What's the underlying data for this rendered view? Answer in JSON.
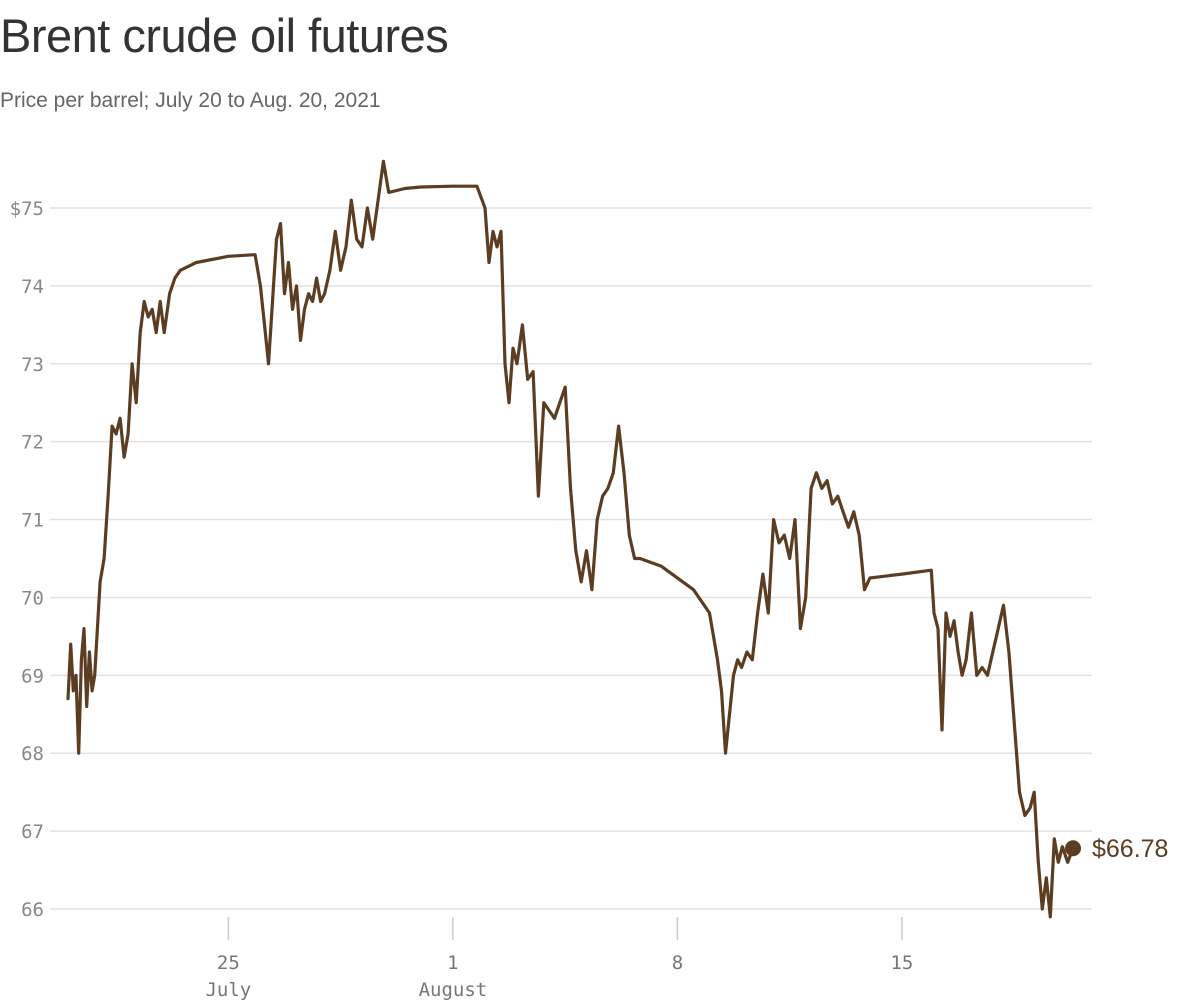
{
  "header": {
    "title": "Brent crude oil futures",
    "subtitle": "Price per barrel; July 20 to Aug. 20, 2021"
  },
  "colors": {
    "line": "#5c3d22",
    "grid": "#e2e2e2",
    "axis_text": "#888888"
  },
  "chart_data": {
    "type": "line",
    "title": "Brent crude oil futures",
    "subtitle": "Price per barrel; July 20 to Aug. 20, 2021",
    "xlabel": "",
    "ylabel": "",
    "ylim": [
      66,
      76
    ],
    "y_ticks": [
      66,
      67,
      68,
      69,
      70,
      71,
      72,
      73,
      74,
      75
    ],
    "y_tick_labels": [
      "66",
      "67",
      "68",
      "69",
      "70",
      "71",
      "72",
      "73",
      "74",
      "$75"
    ],
    "x_ticks": [
      {
        "date": "2021-07-25",
        "label": "25",
        "sublabel": "July"
      },
      {
        "date": "2021-08-01",
        "label": "1",
        "sublabel": "August"
      },
      {
        "date": "2021-08-08",
        "label": "8",
        "sublabel": ""
      },
      {
        "date": "2021-08-15",
        "label": "15",
        "sublabel": ""
      }
    ],
    "grid": true,
    "series": [
      {
        "values": [
          [
            "2021-07-20T00:00",
            68.7
          ],
          [
            "2021-07-20T02:00",
            69.4
          ],
          [
            "2021-07-20T04:00",
            68.8
          ],
          [
            "2021-07-20T06:00",
            69.0
          ],
          [
            "2021-07-20T08:00",
            68.0
          ],
          [
            "2021-07-20T10:00",
            69.2
          ],
          [
            "2021-07-20T12:00",
            69.6
          ],
          [
            "2021-07-20T14:00",
            68.6
          ],
          [
            "2021-07-20T16:00",
            69.3
          ],
          [
            "2021-07-20T18:00",
            68.8
          ],
          [
            "2021-07-20T20:00",
            69.0
          ],
          [
            "2021-07-21T00:00",
            70.2
          ],
          [
            "2021-07-21T03:00",
            70.5
          ],
          [
            "2021-07-21T06:00",
            71.3
          ],
          [
            "2021-07-21T09:00",
            72.2
          ],
          [
            "2021-07-21T12:00",
            72.1
          ],
          [
            "2021-07-21T15:00",
            72.3
          ],
          [
            "2021-07-21T18:00",
            71.8
          ],
          [
            "2021-07-21T21:00",
            72.1
          ],
          [
            "2021-07-22T00:00",
            73.0
          ],
          [
            "2021-07-22T03:00",
            72.5
          ],
          [
            "2021-07-22T06:00",
            73.4
          ],
          [
            "2021-07-22T09:00",
            73.8
          ],
          [
            "2021-07-22T12:00",
            73.6
          ],
          [
            "2021-07-22T15:00",
            73.7
          ],
          [
            "2021-07-22T18:00",
            73.4
          ],
          [
            "2021-07-22T21:00",
            73.8
          ],
          [
            "2021-07-23T00:00",
            73.4
          ],
          [
            "2021-07-23T04:00",
            73.9
          ],
          [
            "2021-07-23T08:00",
            74.1
          ],
          [
            "2021-07-23T12:00",
            74.2
          ],
          [
            "2021-07-24T00:00",
            74.3
          ],
          [
            "2021-07-25T00:00",
            74.38
          ],
          [
            "2021-07-25T20:00",
            74.4
          ],
          [
            "2021-07-26T00:00",
            74.0
          ],
          [
            "2021-07-26T03:00",
            73.5
          ],
          [
            "2021-07-26T06:00",
            73.0
          ],
          [
            "2021-07-26T09:00",
            73.8
          ],
          [
            "2021-07-26T12:00",
            74.6
          ],
          [
            "2021-07-26T15:00",
            74.8
          ],
          [
            "2021-07-26T18:00",
            73.9
          ],
          [
            "2021-07-26T21:00",
            74.3
          ],
          [
            "2021-07-27T00:00",
            73.7
          ],
          [
            "2021-07-27T03:00",
            74.0
          ],
          [
            "2021-07-27T06:00",
            73.3
          ],
          [
            "2021-07-27T09:00",
            73.7
          ],
          [
            "2021-07-27T12:00",
            73.9
          ],
          [
            "2021-07-27T15:00",
            73.8
          ],
          [
            "2021-07-27T18:00",
            74.1
          ],
          [
            "2021-07-27T21:00",
            73.8
          ],
          [
            "2021-07-28T00:00",
            73.9
          ],
          [
            "2021-07-28T04:00",
            74.2
          ],
          [
            "2021-07-28T08:00",
            74.7
          ],
          [
            "2021-07-28T12:00",
            74.2
          ],
          [
            "2021-07-28T16:00",
            74.5
          ],
          [
            "2021-07-28T20:00",
            75.1
          ],
          [
            "2021-07-29T00:00",
            74.6
          ],
          [
            "2021-07-29T04:00",
            74.5
          ],
          [
            "2021-07-29T08:00",
            75.0
          ],
          [
            "2021-07-29T12:00",
            74.6
          ],
          [
            "2021-07-29T16:00",
            75.1
          ],
          [
            "2021-07-29T20:00",
            75.6
          ],
          [
            "2021-07-30T00:00",
            75.2
          ],
          [
            "2021-07-30T12:00",
            75.25
          ],
          [
            "2021-07-31T00:00",
            75.27
          ],
          [
            "2021-08-01T00:00",
            75.28
          ],
          [
            "2021-08-01T18:00",
            75.28
          ],
          [
            "2021-08-02T00:00",
            75.0
          ],
          [
            "2021-08-02T03:00",
            74.3
          ],
          [
            "2021-08-02T06:00",
            74.7
          ],
          [
            "2021-08-02T09:00",
            74.5
          ],
          [
            "2021-08-02T12:00",
            74.7
          ],
          [
            "2021-08-02T15:00",
            73.0
          ],
          [
            "2021-08-02T18:00",
            72.5
          ],
          [
            "2021-08-02T21:00",
            73.2
          ],
          [
            "2021-08-03T00:00",
            73.0
          ],
          [
            "2021-08-03T04:00",
            73.5
          ],
          [
            "2021-08-03T08:00",
            72.8
          ],
          [
            "2021-08-03T12:00",
            72.9
          ],
          [
            "2021-08-03T16:00",
            71.3
          ],
          [
            "2021-08-03T20:00",
            72.5
          ],
          [
            "2021-08-04T00:00",
            72.4
          ],
          [
            "2021-08-04T04:00",
            72.3
          ],
          [
            "2021-08-04T08:00",
            72.5
          ],
          [
            "2021-08-04T12:00",
            72.7
          ],
          [
            "2021-08-04T16:00",
            71.4
          ],
          [
            "2021-08-04T20:00",
            70.6
          ],
          [
            "2021-08-05T00:00",
            70.2
          ],
          [
            "2021-08-05T04:00",
            70.6
          ],
          [
            "2021-08-05T08:00",
            70.1
          ],
          [
            "2021-08-05T12:00",
            71.0
          ],
          [
            "2021-08-05T16:00",
            71.3
          ],
          [
            "2021-08-05T20:00",
            71.4
          ],
          [
            "2021-08-06T00:00",
            71.6
          ],
          [
            "2021-08-06T04:00",
            72.2
          ],
          [
            "2021-08-06T08:00",
            71.6
          ],
          [
            "2021-08-06T12:00",
            70.8
          ],
          [
            "2021-08-06T16:00",
            70.5
          ],
          [
            "2021-08-06T20:00",
            70.5
          ],
          [
            "2021-08-07T12:00",
            70.4
          ],
          [
            "2021-08-08T12:00",
            70.1
          ],
          [
            "2021-08-09T00:00",
            69.8
          ],
          [
            "2021-08-09T03:00",
            69.5
          ],
          [
            "2021-08-09T06:00",
            69.2
          ],
          [
            "2021-08-09T09:00",
            68.8
          ],
          [
            "2021-08-09T12:00",
            68.0
          ],
          [
            "2021-08-09T15:00",
            68.5
          ],
          [
            "2021-08-09T18:00",
            69.0
          ],
          [
            "2021-08-09T21:00",
            69.2
          ],
          [
            "2021-08-10T00:00",
            69.1
          ],
          [
            "2021-08-10T04:00",
            69.3
          ],
          [
            "2021-08-10T08:00",
            69.2
          ],
          [
            "2021-08-10T12:00",
            69.8
          ],
          [
            "2021-08-10T16:00",
            70.3
          ],
          [
            "2021-08-10T20:00",
            69.8
          ],
          [
            "2021-08-11T00:00",
            71.0
          ],
          [
            "2021-08-11T04:00",
            70.7
          ],
          [
            "2021-08-11T08:00",
            70.8
          ],
          [
            "2021-08-11T12:00",
            70.5
          ],
          [
            "2021-08-11T16:00",
            71.0
          ],
          [
            "2021-08-11T20:00",
            69.6
          ],
          [
            "2021-08-12T00:00",
            70.0
          ],
          [
            "2021-08-12T04:00",
            71.4
          ],
          [
            "2021-08-12T08:00",
            71.6
          ],
          [
            "2021-08-12T12:00",
            71.4
          ],
          [
            "2021-08-12T16:00",
            71.5
          ],
          [
            "2021-08-12T20:00",
            71.2
          ],
          [
            "2021-08-13T00:00",
            71.3
          ],
          [
            "2021-08-13T04:00",
            71.1
          ],
          [
            "2021-08-13T08:00",
            70.9
          ],
          [
            "2021-08-13T12:00",
            71.1
          ],
          [
            "2021-08-13T16:00",
            70.8
          ],
          [
            "2021-08-13T20:00",
            70.1
          ],
          [
            "2021-08-14T00:00",
            70.25
          ],
          [
            "2021-08-15T00:00",
            70.3
          ],
          [
            "2021-08-15T22:00",
            70.35
          ],
          [
            "2021-08-16T00:00",
            69.8
          ],
          [
            "2021-08-16T03:00",
            69.6
          ],
          [
            "2021-08-16T06:00",
            68.3
          ],
          [
            "2021-08-16T09:00",
            69.8
          ],
          [
            "2021-08-16T12:00",
            69.5
          ],
          [
            "2021-08-16T15:00",
            69.7
          ],
          [
            "2021-08-16T18:00",
            69.3
          ],
          [
            "2021-08-16T21:00",
            69.0
          ],
          [
            "2021-08-17T00:00",
            69.2
          ],
          [
            "2021-08-17T04:00",
            69.8
          ],
          [
            "2021-08-17T08:00",
            69.0
          ],
          [
            "2021-08-17T12:00",
            69.1
          ],
          [
            "2021-08-17T16:00",
            69.0
          ],
          [
            "2021-08-17T20:00",
            69.3
          ],
          [
            "2021-08-18T00:00",
            69.6
          ],
          [
            "2021-08-18T04:00",
            69.9
          ],
          [
            "2021-08-18T08:00",
            69.3
          ],
          [
            "2021-08-18T12:00",
            68.4
          ],
          [
            "2021-08-18T16:00",
            67.5
          ],
          [
            "2021-08-18T20:00",
            67.2
          ],
          [
            "2021-08-19T00:00",
            67.3
          ],
          [
            "2021-08-19T03:00",
            67.5
          ],
          [
            "2021-08-19T06:00",
            66.6
          ],
          [
            "2021-08-19T09:00",
            66.0
          ],
          [
            "2021-08-19T12:00",
            66.4
          ],
          [
            "2021-08-19T15:00",
            65.9
          ],
          [
            "2021-08-19T18:00",
            66.9
          ],
          [
            "2021-08-19T21:00",
            66.6
          ],
          [
            "2021-08-20T00:00",
            66.8
          ],
          [
            "2021-08-20T04:00",
            66.6
          ],
          [
            "2021-08-20T08:00",
            66.78
          ]
        ]
      }
    ],
    "end_label": "$66.78"
  }
}
